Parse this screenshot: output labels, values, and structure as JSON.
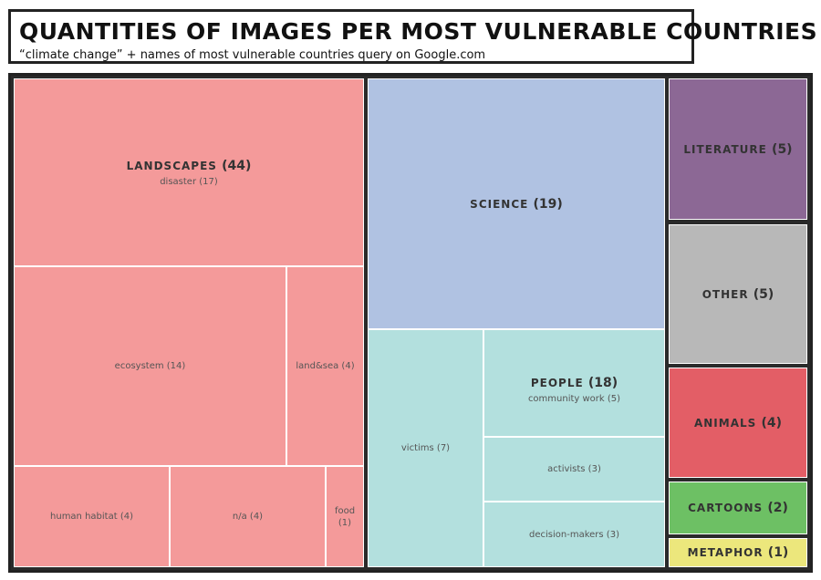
{
  "header": {
    "title": "QUANTITIES OF IMAGES PER MOST VULNERABLE COUNTRIES",
    "subtitle": "“climate change” + names of most vulnerable countries  query on Google.com"
  },
  "colors": {
    "landscapes": "#f49a9a",
    "science": "#b0c2e2",
    "people": "#b3e0de",
    "literature": "#8c6895",
    "other": "#b8b8b8",
    "animals": "#e35e66",
    "cartoons": "#6dc064",
    "metaphor": "#ece77c"
  },
  "chart_data": {
    "type": "treemap",
    "groups": [
      {
        "name": "LANDSCAPES",
        "value": 44,
        "label_value": "(44)",
        "children": [
          {
            "name": "disaster",
            "value": 17,
            "label": "disaster (17)"
          },
          {
            "name": "ecosystem",
            "value": 14,
            "label": "ecosystem (14)"
          },
          {
            "name": "land&sea",
            "value": 4,
            "label": "land&sea (4)"
          },
          {
            "name": "human habitat",
            "value": 4,
            "label": "human habitat (4)"
          },
          {
            "name": "n/a",
            "value": 4,
            "label": "n/a (4)"
          },
          {
            "name": "food",
            "value": 1,
            "label_line1": "food",
            "label_line2": "(1)"
          }
        ]
      },
      {
        "name": "SCIENCE",
        "value": 19,
        "label_value": "(19)"
      },
      {
        "name": "PEOPLE",
        "value": 18,
        "label_value": "(18)",
        "children": [
          {
            "name": "victims",
            "value": 7,
            "label": "victims (7)"
          },
          {
            "name": "community work",
            "value": 5,
            "label": "community work (5)"
          },
          {
            "name": "activists",
            "value": 3,
            "label": "activists (3)"
          },
          {
            "name": "decision-makers",
            "value": 3,
            "label": "decision-makers (3)"
          }
        ]
      },
      {
        "name": "LITERATURE",
        "value": 5,
        "label_value": "(5)"
      },
      {
        "name": "OTHER",
        "value": 5,
        "label_value": "(5)"
      },
      {
        "name": "ANIMALS",
        "value": 4,
        "label_value": "(4)"
      },
      {
        "name": "CARTOONS",
        "value": 2,
        "label_value": "(2)"
      },
      {
        "name": "METAPHOR",
        "value": 1,
        "label_value": "(1)"
      }
    ]
  }
}
